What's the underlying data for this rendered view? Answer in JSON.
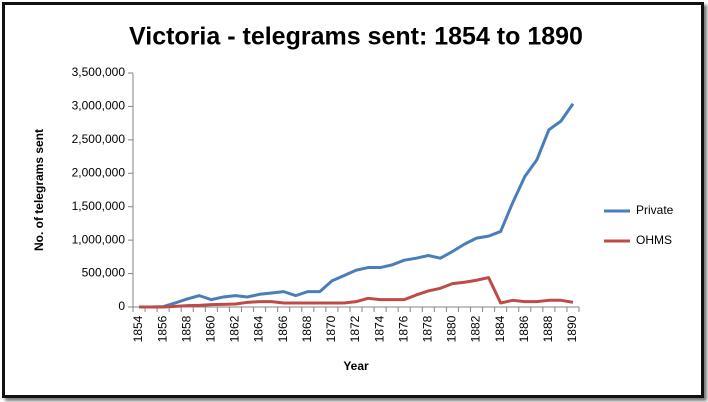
{
  "chart_data": {
    "type": "line",
    "title": "Victoria - telegrams sent: 1854 to 1890",
    "x_label": "Year",
    "y_label": "No. of telegrams sent",
    "categories": [
      1854,
      null,
      1856,
      null,
      1858,
      null,
      1860,
      null,
      1862,
      null,
      1864,
      null,
      1866,
      null,
      1868,
      null,
      1870,
      null,
      1872,
      null,
      1874,
      null,
      1876,
      null,
      1878,
      null,
      1880,
      null,
      1882,
      null,
      1884,
      null,
      1886,
      null,
      1888,
      null,
      1890
    ],
    "series": [
      {
        "name": "Private",
        "color": "#4a7ebb",
        "values": [
          0,
          0,
          5000,
          60000,
          120000,
          170000,
          110000,
          150000,
          170000,
          150000,
          190000,
          210000,
          230000,
          170000,
          230000,
          230000,
          390000,
          470000,
          550000,
          590000,
          590000,
          630000,
          700000,
          730000,
          770000,
          730000,
          830000,
          940000,
          1030000,
          1060000,
          1130000,
          1560000,
          1950000,
          2200000,
          2650000,
          2780000,
          3040000
        ]
      },
      {
        "name": "OHMS",
        "color": "#be4b48",
        "values": [
          0,
          0,
          0,
          10000,
          20000,
          25000,
          35000,
          40000,
          45000,
          70000,
          80000,
          80000,
          60000,
          60000,
          60000,
          60000,
          60000,
          60000,
          80000,
          130000,
          110000,
          110000,
          110000,
          180000,
          240000,
          280000,
          350000,
          370000,
          400000,
          440000,
          60000,
          100000,
          80000,
          80000,
          100000,
          100000,
          70000
        ]
      }
    ],
    "ylim": [
      0,
      3500000
    ],
    "yticks": [
      0,
      {
        "value": 500000,
        "label": "500,000"
      },
      {
        "value": 1000000,
        "label": "1,000,000"
      },
      {
        "value": 1500000,
        "label": "1,500,000"
      },
      {
        "value": 2000000,
        "label": "2,000,000"
      },
      {
        "value": 2500000,
        "label": "2,500,000"
      },
      {
        "value": 3000000,
        "label": "3,000,000"
      },
      {
        "value": 3500000,
        "label": "3,500,000"
      }
    ],
    "grid": false,
    "legend": "right"
  }
}
